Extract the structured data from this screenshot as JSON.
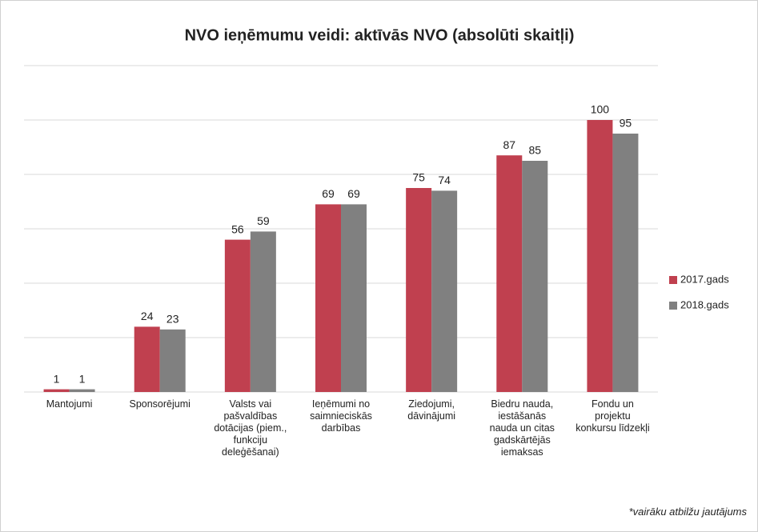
{
  "chart_data": {
    "type": "bar",
    "title": "NVO ieņēmumu veidi: aktīvās NVO  (absolūti skaitļi)",
    "categories": [
      "Mantojumi",
      "Sponsorējumi",
      "Valsts vai\npašvaldības\ndotācijas (piem.,\nfunkciju\ndeleģēšanai)",
      "Ieņēmumi no\nsaimnieciskās\ndarbības",
      "Ziedojumi,\ndāvinājumi",
      "Biedru nauda,\niestāšanās\nnauda un citas\ngadskārtējās\niemaksas",
      "Fondu un\nprojektu\nkonkursu līdzekļi"
    ],
    "series": [
      {
        "name": "2017.gads",
        "color": "#c0404f",
        "values": [
          1,
          24,
          56,
          69,
          75,
          87,
          100
        ]
      },
      {
        "name": "2018.gads",
        "color": "#808080",
        "values": [
          1,
          23,
          59,
          69,
          74,
          85,
          95
        ]
      }
    ],
    "ylim": [
      0,
      120
    ],
    "yticks": [
      0,
      20,
      40,
      60,
      80,
      100,
      120
    ],
    "grid": true,
    "legend": "right",
    "footnote": "*vairāku atbilžu jautājums"
  }
}
